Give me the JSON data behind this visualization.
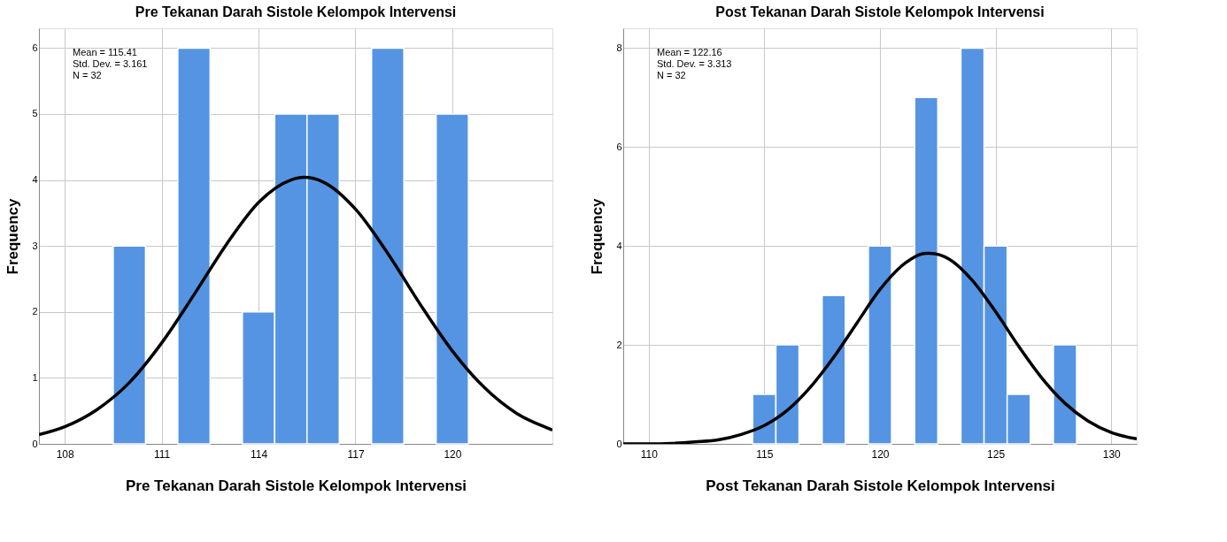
{
  "chart_data": [
    {
      "type": "histogram",
      "title": "Pre Tekanan Darah Sistole Kelompok Intervensi",
      "xlabel": "Pre Tekanan Darah Sistole Kelompok Intervensi",
      "ylabel": "Frequency",
      "series": [
        {
          "color": "#5594e2",
          "bins": [
            109.5,
            110.5,
            111.5,
            112.5,
            113.5,
            114.5,
            115.5,
            116.5,
            117.5,
            118.5,
            119.5,
            120.5
          ],
          "values": [
            3,
            0,
            6,
            0,
            2,
            5,
            5,
            0,
            6,
            0,
            5
          ]
        },
        {
          "type": "line",
          "color": "#000000",
          "x": [
            107.2,
            108,
            109,
            110,
            111,
            112,
            113,
            114,
            115,
            115.41,
            116,
            117,
            118,
            119,
            120,
            121,
            122,
            123,
            123.1
          ],
          "values": [
            0.14,
            0.26,
            0.52,
            0.93,
            1.53,
            2.26,
            3.02,
            3.66,
            4.0,
            4.04,
            3.97,
            3.56,
            2.89,
            2.12,
            1.41,
            0.85,
            0.46,
            0.23,
            0.21
          ]
        }
      ],
      "xlim": [
        107.2,
        123.1
      ],
      "xticks": [
        108,
        111,
        114,
        117,
        120
      ],
      "ylim": [
        0,
        6.3
      ],
      "yticks": [
        0,
        1,
        2,
        3,
        4,
        5,
        6
      ],
      "grid": true,
      "annotations": [
        "Mean = 115.41",
        "Std. Dev. = 3.161",
        "N = 32"
      ]
    },
    {
      "type": "histogram",
      "title": "Post Tekanan Darah Sistole Kelompok Intervensi",
      "xlabel": "Post Tekanan Darah Sistole Kelompok Intervensi",
      "ylabel": "Frequency",
      "series": [
        {
          "color": "#5594e2",
          "bins": [
            114.5,
            115.5,
            116.5,
            117.5,
            118.5,
            119.5,
            120.5,
            121.5,
            122.5,
            123.5,
            124.5,
            125.5,
            126.5,
            127.5,
            128.5
          ],
          "values": [
            1,
            2,
            0,
            3,
            0,
            4,
            0,
            7,
            0,
            8,
            4,
            1,
            0,
            2
          ]
        },
        {
          "type": "line",
          "color": "#000000",
          "x": [
            108.9,
            110,
            111,
            112,
            113,
            114,
            115,
            116,
            117,
            118,
            119,
            120,
            121,
            122,
            122.16,
            123,
            124,
            125,
            126,
            127,
            128,
            129,
            130,
            131.1
          ],
          "values": [
            0.0,
            0.0,
            0.01,
            0.04,
            0.08,
            0.19,
            0.37,
            0.68,
            1.15,
            1.75,
            2.44,
            3.12,
            3.62,
            3.85,
            3.85,
            3.73,
            3.3,
            2.67,
            1.97,
            1.33,
            0.82,
            0.46,
            0.23,
            0.1
          ]
        }
      ],
      "xlim": [
        108.9,
        131.1
      ],
      "xticks": [
        110,
        115,
        120,
        125,
        130
      ],
      "ylim": [
        0,
        8.4
      ],
      "yticks": [
        0,
        2,
        4,
        6,
        8
      ],
      "grid": true,
      "annotations": [
        "Mean = 122.16",
        "Std. Dev. = 3.313",
        "N = 32"
      ]
    }
  ]
}
